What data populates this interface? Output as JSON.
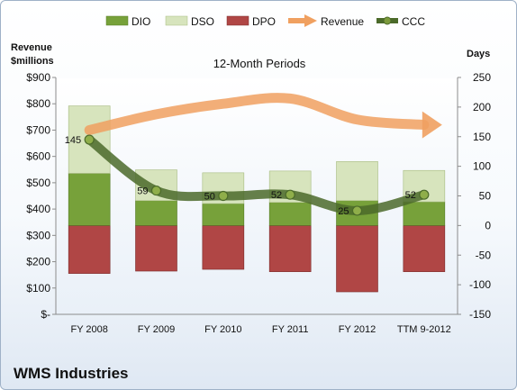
{
  "chart_data": {
    "type": "bar",
    "title": "12-Month Periods",
    "footer": "WMS Industries",
    "y_left_label": [
      "Revenue",
      "$millions"
    ],
    "y_right_label": "Days",
    "y_left_lim": [
      0,
      900
    ],
    "y_left_ticks": [
      "$-",
      "$100",
      "$200",
      "$300",
      "$400",
      "$500",
      "$600",
      "$700",
      "$800",
      "$900"
    ],
    "y_right_lim": [
      -150,
      250
    ],
    "y_right_ticks": [
      "-150",
      "-100",
      "-50",
      "0",
      "50",
      "100",
      "150",
      "200",
      "250"
    ],
    "categories": [
      "FY 2008",
      "FY 2009",
      "FY 2010",
      "FY 2011",
      "FY 2012",
      "TTM 9-2012"
    ],
    "legend": [
      "DIO",
      "DSO",
      "DPO",
      "Revenue",
      "CCC"
    ],
    "series": [
      {
        "name": "DIO",
        "values": [
          88,
          42,
          37,
          39,
          42,
          40
        ],
        "color": "#77a13a"
      },
      {
        "name": "DSO",
        "values": [
          114,
          52,
          52,
          53,
          66,
          53
        ],
        "color": "#d7e4bd"
      },
      {
        "name": "DPO",
        "values": [
          -81,
          -77,
          -74,
          -78,
          -112,
          -78
        ],
        "color": "#b04645"
      },
      {
        "name": "Revenue",
        "values": [
          700,
          760,
          800,
          820,
          740,
          720
        ],
        "color": "#f0a060"
      },
      {
        "name": "CCC",
        "values": [
          145,
          59,
          50,
          52,
          25,
          52
        ],
        "color": "#4b6a2a"
      }
    ],
    "ccc_labels": [
      "145",
      "59",
      "50",
      "52",
      "25",
      "52"
    ]
  }
}
